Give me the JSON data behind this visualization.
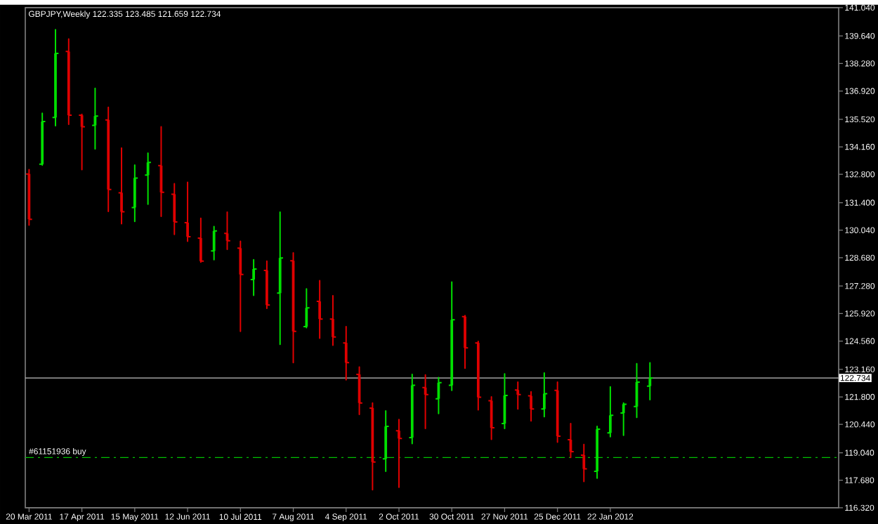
{
  "chart_data": {
    "type": "candlestick",
    "title": "GBPJPY,Weekly  122.335 123.485 121.659 122.734",
    "x": [
      "2011-03-20",
      "2011-03-27",
      "2011-04-03",
      "2011-04-10",
      "2011-04-17",
      "2011-04-24",
      "2011-05-01",
      "2011-05-08",
      "2011-05-15",
      "2011-05-22",
      "2011-05-29",
      "2011-06-05",
      "2011-06-12",
      "2011-06-19",
      "2011-06-26",
      "2011-07-03",
      "2011-07-10",
      "2011-07-17",
      "2011-07-24",
      "2011-07-31",
      "2011-08-07",
      "2011-08-14",
      "2011-08-21",
      "2011-08-28",
      "2011-09-04",
      "2011-09-11",
      "2011-09-18",
      "2011-09-25",
      "2011-10-02",
      "2011-10-09",
      "2011-10-16",
      "2011-10-23",
      "2011-10-30",
      "2011-11-06",
      "2011-11-13",
      "2011-11-20",
      "2011-11-27",
      "2011-12-04",
      "2011-12-11",
      "2011-12-18",
      "2011-12-25",
      "2012-01-01",
      "2012-01-08",
      "2012-01-15",
      "2012-01-22",
      "2012-01-29",
      "2012-02-05",
      "2012-02-12"
    ],
    "ohlc": [
      [
        132.82,
        133.03,
        130.29,
        130.58
      ],
      [
        133.3,
        135.82,
        133.26,
        135.41
      ],
      [
        135.61,
        139.95,
        135.2,
        138.78
      ],
      [
        138.87,
        139.49,
        135.27,
        135.72
      ],
      [
        135.72,
        135.77,
        133.03,
        135.15
      ],
      [
        135.22,
        137.05,
        134.06,
        135.68
      ],
      [
        135.49,
        136.11,
        130.97,
        132.05
      ],
      [
        131.89,
        134.1,
        130.36,
        130.95
      ],
      [
        131.16,
        133.26,
        130.47,
        132.62
      ],
      [
        132.76,
        133.85,
        131.32,
        133.39
      ],
      [
        133.23,
        135.15,
        130.72,
        131.91
      ],
      [
        131.82,
        132.34,
        129.83,
        130.45
      ],
      [
        130.41,
        132.41,
        129.49,
        129.72
      ],
      [
        129.65,
        130.63,
        128.46,
        128.51
      ],
      [
        129.01,
        130.22,
        128.58,
        130.0
      ],
      [
        129.88,
        130.93,
        129.09,
        129.52
      ],
      [
        129.15,
        129.49,
        125.04,
        127.85
      ],
      [
        127.6,
        128.58,
        126.82,
        128.12
      ],
      [
        128.05,
        128.51,
        126.18,
        126.34
      ],
      [
        126.93,
        130.93,
        124.4,
        128.67
      ],
      [
        128.53,
        128.92,
        123.49,
        125.04
      ],
      [
        125.27,
        127.14,
        125.22,
        126.2
      ],
      [
        126.52,
        127.55,
        124.7,
        125.65
      ],
      [
        125.65,
        126.8,
        124.35,
        124.76
      ],
      [
        124.47,
        125.27,
        122.64,
        123.49
      ],
      [
        122.91,
        123.28,
        120.93,
        121.5
      ],
      [
        121.25,
        121.5,
        117.21,
        118.58
      ],
      [
        118.74,
        121.11,
        118.12,
        120.34
      ],
      [
        120.13,
        120.68,
        117.33,
        119.74
      ],
      [
        119.79,
        122.91,
        119.49,
        122.37
      ],
      [
        122.26,
        122.89,
        120.24,
        121.91
      ],
      [
        121.71,
        122.76,
        120.98,
        122.5
      ],
      [
        122.37,
        127.48,
        122.12,
        125.61
      ],
      [
        125.77,
        125.82,
        123.22,
        124.22
      ],
      [
        124.47,
        124.54,
        121.16,
        121.78
      ],
      [
        121.61,
        121.8,
        119.7,
        120.27
      ],
      [
        120.48,
        122.94,
        120.24,
        121.87
      ],
      [
        122.14,
        122.53,
        121.2,
        121.91
      ],
      [
        121.85,
        122.05,
        120.61,
        121.2
      ],
      [
        121.2,
        122.98,
        120.82,
        121.96
      ],
      [
        122.12,
        122.53,
        119.56,
        119.86
      ],
      [
        119.68,
        120.48,
        118.81,
        119.09
      ],
      [
        118.92,
        119.45,
        117.62,
        118.24
      ],
      [
        118.12,
        120.34,
        117.78,
        120.2
      ],
      [
        120.02,
        122.3,
        119.83,
        120.89
      ],
      [
        121.0,
        121.5,
        119.9,
        121.44
      ],
      [
        121.32,
        123.44,
        120.79,
        122.53
      ],
      [
        122.335,
        123.485,
        121.659,
        122.734
      ]
    ],
    "colors": [
      "#e00000",
      "#00e000",
      "#00e000",
      "#e00000",
      "#e00000",
      "#00e000",
      "#e00000",
      "#e00000",
      "#00e000",
      "#00e000",
      "#e00000",
      "#e00000",
      "#e00000",
      "#e00000",
      "#00e000",
      "#e00000",
      "#e00000",
      "#00e000",
      "#e00000",
      "#00e000",
      "#e00000",
      "#00e000",
      "#e00000",
      "#e00000",
      "#e00000",
      "#e00000",
      "#e00000",
      "#00e000",
      "#e00000",
      "#00e000",
      "#e00000",
      "#00e000",
      "#00e000",
      "#e00000",
      "#e00000",
      "#e00000",
      "#00e000",
      "#e00000",
      "#e00000",
      "#00e000",
      "#e00000",
      "#e00000",
      "#e00000",
      "#00e000",
      "#00e000",
      "#00e000",
      "#00e000",
      "#00e000"
    ],
    "xlim": [
      "2011-03-18",
      "2012-05-22"
    ],
    "xticks": [
      {
        "value": "2011-03-20",
        "label": "20 Mar 2011"
      },
      {
        "value": "2011-04-17",
        "label": "17 Apr 2011"
      },
      {
        "value": "2011-05-15",
        "label": "15 May 2011"
      },
      {
        "value": "2011-06-12",
        "label": "12 Jun 2011"
      },
      {
        "value": "2011-07-10",
        "label": "10 Jul 2011"
      },
      {
        "value": "2011-08-07",
        "label": "7 Aug 2011"
      },
      {
        "value": "2011-09-04",
        "label": "4 Sep 2011"
      },
      {
        "value": "2011-10-02",
        "label": "2 Oct 2011"
      },
      {
        "value": "2011-10-30",
        "label": "30 Oct 2011"
      },
      {
        "value": "2011-11-27",
        "label": "27 Nov 2011"
      },
      {
        "value": "2011-12-25",
        "label": "25 Dec 2011"
      },
      {
        "value": "2012-01-22",
        "label": "22 Jan 2012"
      }
    ],
    "ylim": [
      116.32,
      141.04
    ],
    "yticks": [
      {
        "value": 116.32,
        "label": "116.320"
      },
      {
        "value": 117.68,
        "label": "117.680"
      },
      {
        "value": 119.04,
        "label": "119.040"
      },
      {
        "value": 120.44,
        "label": "120.440"
      },
      {
        "value": 121.8,
        "label": "121.800"
      },
      {
        "value": 123.16,
        "label": "123.160"
      },
      {
        "value": 124.56,
        "label": "124.560"
      },
      {
        "value": 125.92,
        "label": "125.920"
      },
      {
        "value": 127.28,
        "label": "127.280"
      },
      {
        "value": 128.68,
        "label": "128.680"
      },
      {
        "value": 130.04,
        "label": "130.040"
      },
      {
        "value": 131.4,
        "label": "131.400"
      },
      {
        "value": 132.8,
        "label": "132.800"
      },
      {
        "value": 134.16,
        "label": "134.160"
      },
      {
        "value": 135.52,
        "label": "135.520"
      },
      {
        "value": 136.92,
        "label": "136.920"
      },
      {
        "value": 138.28,
        "label": "138.280"
      },
      {
        "value": 139.64,
        "label": "139.640"
      },
      {
        "value": 141.04,
        "label": "141.040"
      }
    ],
    "ref_lines": [
      {
        "axis": "y",
        "value": 122.734,
        "label": "122.734",
        "color": "#c0c0c0",
        "line_style": "solid"
      },
      {
        "axis": "y",
        "value": 118.8,
        "label": "#61151936 buy",
        "color": "#00c000",
        "line_style": "dashed"
      }
    ]
  }
}
